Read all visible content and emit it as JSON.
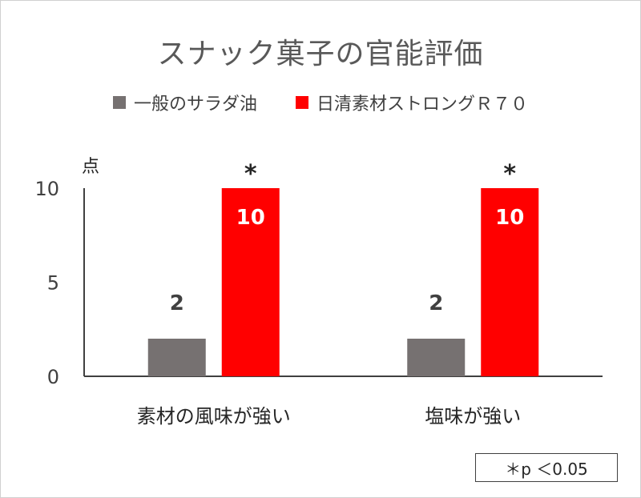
{
  "chart_data": {
    "type": "bar",
    "title": "スナック菓子の官能評価",
    "ylabel": "点",
    "ylim": [
      0,
      10
    ],
    "yticks": [
      0,
      5,
      10
    ],
    "categories": [
      "素材の風味が強い",
      "塩味が強い"
    ],
    "series": [
      {
        "name": "一般のサラダ油",
        "color": "#767171",
        "values": [
          2,
          2
        ],
        "labels": [
          "2",
          "2"
        ],
        "label_position": "above",
        "marks": [
          "",
          ""
        ]
      },
      {
        "name": "日清素材ストロングＲ７０",
        "color": "#ff0000",
        "values": [
          10,
          10
        ],
        "labels": [
          "10",
          "10"
        ],
        "label_position": "inside",
        "marks": [
          "*",
          "*"
        ]
      }
    ],
    "legend_position": "top",
    "grid": false,
    "note": "＊p ＜0.05"
  }
}
